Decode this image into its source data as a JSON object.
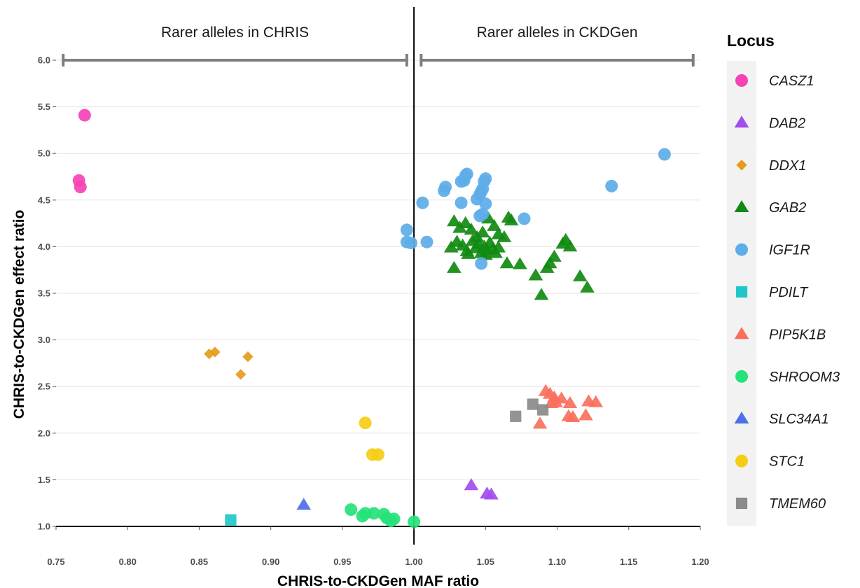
{
  "chart_data": {
    "type": "scatter",
    "xlabel": "CHRIS-to-CKDGen MAF ratio",
    "ylabel": "CHRIS-to-CKDGen effect ratio",
    "xlim": [
      0.75,
      1.2
    ],
    "ylim": [
      1.0,
      6.0
    ],
    "xticks": [
      "0.75",
      "0.80",
      "0.85",
      "0.90",
      "0.95",
      "1.00",
      "1.05",
      "1.10",
      "1.15",
      "1.20"
    ],
    "yticks": [
      "1.0",
      "1.5",
      "2.0",
      "2.5",
      "3.0",
      "3.5",
      "4.0",
      "4.5",
      "5.0",
      "5.5",
      "6.0"
    ],
    "grid": "horizontal",
    "reference_line_x": 1.0,
    "reference_line_y": 1.0,
    "region_labels": [
      {
        "text": "Rarer alleles in CHRIS",
        "x_range": [
          0.755,
          0.995
        ]
      },
      {
        "text": "Rarer alleles in CKDGen",
        "x_range": [
          1.005,
          1.195
        ]
      }
    ],
    "legend_title": "Locus",
    "legend_position": "right",
    "series": [
      {
        "name": "CASZ1",
        "color": "#f543b6",
        "shape": "circle",
        "points": [
          [
            0.77,
            5.41
          ],
          [
            0.766,
            4.71
          ],
          [
            0.767,
            4.64
          ]
        ]
      },
      {
        "name": "DAB2",
        "color": "#a34ded",
        "shape": "triangle",
        "points": [
          [
            1.04,
            1.44
          ],
          [
            1.051,
            1.35
          ],
          [
            1.054,
            1.34
          ]
        ]
      },
      {
        "name": "DDX1",
        "color": "#e69b1a",
        "shape": "diamond",
        "points": [
          [
            0.857,
            2.85
          ],
          [
            0.861,
            2.87
          ],
          [
            0.884,
            2.82
          ],
          [
            0.879,
            2.63
          ]
        ]
      },
      {
        "name": "GAB2",
        "color": "#118a11",
        "shape": "triangle",
        "points": [
          [
            1.028,
            4.27
          ],
          [
            1.032,
            4.2
          ],
          [
            1.036,
            4.25
          ],
          [
            1.04,
            4.18
          ],
          [
            1.044,
            4.1
          ],
          [
            1.048,
            4.15
          ],
          [
            1.052,
            4.3
          ],
          [
            1.056,
            4.22
          ],
          [
            1.059,
            4.13
          ],
          [
            1.063,
            4.1
          ],
          [
            1.066,
            4.31
          ],
          [
            1.068,
            4.28
          ],
          [
            1.026,
            3.99
          ],
          [
            1.03,
            4.05
          ],
          [
            1.034,
            4.01
          ],
          [
            1.037,
            3.95
          ],
          [
            1.041,
            4.06
          ],
          [
            1.043,
            3.98
          ],
          [
            1.045,
            4.03
          ],
          [
            1.047,
            3.93
          ],
          [
            1.049,
            4.0
          ],
          [
            1.051,
            3.96
          ],
          [
            1.053,
            4.04
          ],
          [
            1.055,
            3.97
          ],
          [
            1.057,
            3.93
          ],
          [
            1.059,
            3.99
          ],
          [
            1.038,
            3.92
          ],
          [
            1.05,
            3.91
          ],
          [
            1.028,
            3.77
          ],
          [
            1.065,
            3.82
          ],
          [
            1.074,
            3.81
          ],
          [
            1.085,
            3.69
          ],
          [
            1.089,
            3.48
          ],
          [
            1.093,
            3.77
          ],
          [
            1.095,
            3.82
          ],
          [
            1.098,
            3.89
          ],
          [
            1.104,
            4.03
          ],
          [
            1.106,
            4.07
          ],
          [
            1.109,
            4.0
          ],
          [
            1.116,
            3.68
          ],
          [
            1.121,
            3.56
          ]
        ]
      },
      {
        "name": "IGF1R",
        "color": "#5dade8",
        "shape": "circle",
        "points": [
          [
            1.175,
            4.99
          ],
          [
            1.138,
            4.65
          ],
          [
            1.077,
            4.3
          ],
          [
            1.006,
            4.47
          ],
          [
            1.021,
            4.6
          ],
          [
            1.022,
            4.64
          ],
          [
            1.033,
            4.7
          ],
          [
            1.035,
            4.71
          ],
          [
            1.036,
            4.76
          ],
          [
            1.037,
            4.78
          ],
          [
            1.049,
            4.7
          ],
          [
            1.05,
            4.73
          ],
          [
            1.046,
            4.56
          ],
          [
            1.047,
            4.59
          ],
          [
            1.048,
            4.62
          ],
          [
            1.033,
            4.47
          ],
          [
            1.044,
            4.51
          ],
          [
            1.05,
            4.46
          ],
          [
            1.046,
            4.33
          ],
          [
            1.048,
            4.35
          ],
          [
            0.995,
            4.18
          ],
          [
            0.995,
            4.05
          ],
          [
            0.998,
            4.04
          ],
          [
            1.009,
            4.05
          ],
          [
            1.047,
            3.82
          ]
        ]
      },
      {
        "name": "PDILT",
        "color": "#1fc8c8",
        "shape": "square",
        "points": [
          [
            0.872,
            1.07
          ]
        ]
      },
      {
        "name": "PIP5K1B",
        "color": "#f8705c",
        "shape": "triangle",
        "points": [
          [
            1.092,
            2.45
          ],
          [
            1.095,
            2.42
          ],
          [
            1.098,
            2.38
          ],
          [
            1.103,
            2.37
          ],
          [
            1.096,
            2.32
          ],
          [
            1.099,
            2.33
          ],
          [
            1.109,
            2.32
          ],
          [
            1.122,
            2.34
          ],
          [
            1.127,
            2.33
          ],
          [
            1.088,
            2.1
          ],
          [
            1.108,
            2.18
          ],
          [
            1.111,
            2.17
          ],
          [
            1.12,
            2.19
          ]
        ]
      },
      {
        "name": "SHROOM3",
        "color": "#25e27a",
        "shape": "circle",
        "points": [
          [
            0.956,
            1.18
          ],
          [
            0.964,
            1.11
          ],
          [
            0.966,
            1.14
          ],
          [
            0.972,
            1.14
          ],
          [
            0.979,
            1.13
          ],
          [
            0.981,
            1.09
          ],
          [
            0.984,
            1.06
          ],
          [
            0.986,
            1.08
          ],
          [
            1.0,
            1.05
          ]
        ]
      },
      {
        "name": "SLC34A1",
        "color": "#4d6fe8",
        "shape": "triangle",
        "points": [
          [
            0.923,
            1.23
          ]
        ]
      },
      {
        "name": "STC1",
        "color": "#f5cd13",
        "shape": "circle",
        "points": [
          [
            0.966,
            2.11
          ],
          [
            0.971,
            1.77
          ],
          [
            0.975,
            1.77
          ]
        ]
      },
      {
        "name": "TMEM60",
        "color": "#8a8a8a",
        "shape": "square",
        "points": [
          [
            1.071,
            2.18
          ],
          [
            1.083,
            2.31
          ],
          [
            1.09,
            2.25
          ]
        ]
      }
    ]
  }
}
